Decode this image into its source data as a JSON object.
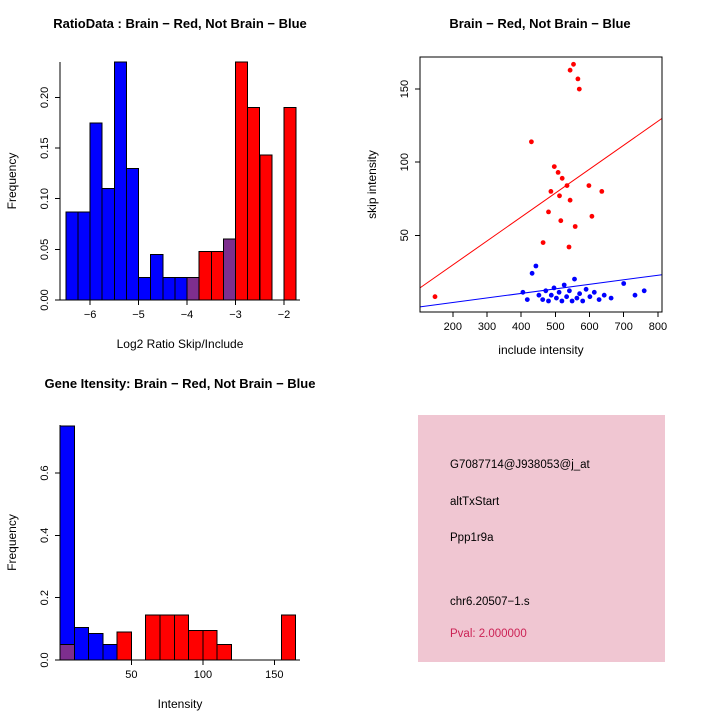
{
  "colors": {
    "red": "#FF0000",
    "blue": "#0000FF",
    "purple": "#7E2E8E",
    "axis": "#000000",
    "info_panel_bg": "#F0C6D2",
    "pval_text": "#CC2255"
  },
  "chart_data": [
    {
      "id": "ratio_histogram",
      "type": "bar",
      "title": "RatioData : Brain − Red, Not Brain − Blue",
      "xlabel": "Log2 Ratio Skip/Include",
      "ylabel": "Frequency",
      "xlim": [
        -6.62,
        -1.67
      ],
      "ylim": [
        0,
        0.235
      ],
      "xticks": [
        -6,
        -5,
        -4,
        -3,
        -2
      ],
      "xtick_labels": [
        "−6",
        "−5",
        "−4",
        "−3",
        "−2"
      ],
      "yticks": [
        0,
        0.05,
        0.1,
        0.15,
        0.2
      ],
      "ytick_labels": [
        "0.00",
        "0.05",
        "0.10",
        "0.15",
        "0.20"
      ],
      "bin_width": 0.25,
      "bars": [
        {
          "x": -6.5,
          "h": 0.087,
          "c": "blue"
        },
        {
          "x": -6.25,
          "h": 0.087,
          "c": "blue"
        },
        {
          "x": -6.0,
          "h": 0.175,
          "c": "blue"
        },
        {
          "x": -5.75,
          "h": 0.11,
          "c": "blue"
        },
        {
          "x": -5.5,
          "h": 0.235,
          "c": "blue"
        },
        {
          "x": -5.25,
          "h": 0.13,
          "c": "blue"
        },
        {
          "x": -5.0,
          "h": 0.022,
          "c": "blue"
        },
        {
          "x": -4.75,
          "h": 0.045,
          "c": "blue"
        },
        {
          "x": -4.5,
          "h": 0.022,
          "c": "blue"
        },
        {
          "x": -4.25,
          "h": 0.022,
          "c": "blue"
        },
        {
          "x": -4.0,
          "h": 0.022,
          "c": "purple"
        },
        {
          "x": -3.75,
          "h": 0.048,
          "c": "red"
        },
        {
          "x": -3.5,
          "h": 0.048,
          "c": "red"
        },
        {
          "x": -3.25,
          "h": 0.06,
          "c": "purple"
        },
        {
          "x": -3.0,
          "h": 0.235,
          "c": "red"
        },
        {
          "x": -2.75,
          "h": 0.19,
          "c": "red"
        },
        {
          "x": -2.5,
          "h": 0.143,
          "c": "red"
        },
        {
          "x": -2.0,
          "h": 0.19,
          "c": "red"
        }
      ]
    },
    {
      "id": "intensity_scatter",
      "type": "scatter",
      "box": true,
      "title": "Brain − Red, Not Brain − Blue",
      "xlabel": "include intensity",
      "ylabel": "skip intensity",
      "xlim": [
        104,
        812
      ],
      "ylim": [
        -2.5,
        172
      ],
      "xticks": [
        200,
        300,
        400,
        500,
        600,
        700,
        800
      ],
      "xtick_labels": [
        "200",
        "300",
        "400",
        "500",
        "600",
        "700",
        "800"
      ],
      "yticks": [
        50,
        100,
        150
      ],
      "ytick_labels": [
        "50",
        "100",
        "150"
      ],
      "series": [
        {
          "name": "brain-red",
          "c": "red",
          "points": [
            [
              148,
              8
            ],
            [
              430,
              114
            ],
            [
              543,
              163
            ],
            [
              553,
              167
            ],
            [
              566,
              157
            ],
            [
              570,
              150
            ],
            [
              497,
              97
            ],
            [
              508,
              93
            ],
            [
              520,
              89
            ],
            [
              534,
              84
            ],
            [
              487,
              80
            ],
            [
              512,
              77
            ],
            [
              543,
              74
            ],
            [
              598,
              84
            ],
            [
              636,
              80
            ],
            [
              480,
              66
            ],
            [
              516,
              60
            ],
            [
              558,
              56
            ],
            [
              607,
              63
            ],
            [
              464,
              45
            ],
            [
              540,
              42
            ]
          ]
        },
        {
          "name": "not-brain-blue",
          "c": "blue",
          "points": [
            [
              405,
              11
            ],
            [
              418,
              6
            ],
            [
              432,
              24
            ],
            [
              443,
              29
            ],
            [
              452,
              9
            ],
            [
              463,
              6
            ],
            [
              472,
              12
            ],
            [
              480,
              5
            ],
            [
              488,
              9
            ],
            [
              496,
              14
            ],
            [
              503,
              7
            ],
            [
              511,
              11
            ],
            [
              519,
              5
            ],
            [
              526,
              16
            ],
            [
              533,
              8
            ],
            [
              541,
              12
            ],
            [
              549,
              5
            ],
            [
              556,
              20
            ],
            [
              563,
              7
            ],
            [
              571,
              10
            ],
            [
              580,
              5
            ],
            [
              590,
              13
            ],
            [
              601,
              8
            ],
            [
              614,
              11
            ],
            [
              628,
              6
            ],
            [
              643,
              9
            ],
            [
              663,
              7
            ],
            [
              700,
              17
            ],
            [
              733,
              9
            ],
            [
              760,
              12
            ]
          ]
        }
      ],
      "lines": [
        {
          "c": "red",
          "from": [
            104,
            14
          ],
          "to": [
            812,
            130
          ]
        },
        {
          "c": "blue",
          "from": [
            104,
            1
          ],
          "to": [
            812,
            23
          ]
        }
      ]
    },
    {
      "id": "gene_intensity_histogram",
      "type": "bar",
      "title": "Gene Itensity: Brain − Red, Not Brain − Blue",
      "xlabel": "Intensity",
      "ylabel": "Frequency",
      "xlim": [
        0,
        168
      ],
      "ylim": [
        0,
        0.754
      ],
      "xticks": [
        50,
        100,
        150
      ],
      "xtick_labels": [
        "50",
        "100",
        "150"
      ],
      "yticks": [
        0,
        0.2,
        0.4,
        0.6
      ],
      "ytick_labels": [
        "0.0",
        "0.2",
        "0.4",
        "0.6"
      ],
      "bin_width": 10,
      "bars": [
        {
          "x": 0,
          "h": 0.75,
          "c": "blue"
        },
        {
          "x": 0,
          "h": 0.05,
          "c": "purple"
        },
        {
          "x": 10,
          "h": 0.105,
          "c": "blue"
        },
        {
          "x": 20,
          "h": 0.085,
          "c": "blue"
        },
        {
          "x": 30,
          "h": 0.05,
          "c": "blue"
        },
        {
          "x": 40,
          "h": 0.09,
          "c": "red"
        },
        {
          "x": 60,
          "h": 0.145,
          "c": "red"
        },
        {
          "x": 70,
          "h": 0.145,
          "c": "red"
        },
        {
          "x": 80,
          "h": 0.145,
          "c": "red"
        },
        {
          "x": 90,
          "h": 0.095,
          "c": "red"
        },
        {
          "x": 100,
          "h": 0.095,
          "c": "red"
        },
        {
          "x": 110,
          "h": 0.05,
          "c": "red"
        },
        {
          "x": 155,
          "h": 0.145,
          "c": "red"
        }
      ]
    },
    {
      "id": "gene_info_panel",
      "type": "info",
      "lines": [
        "G7087714@J938053@j_at",
        "altTxStart",
        "Ppp1r9a",
        "chr6.20507−1.s"
      ],
      "pval": "Pval: 2.000000"
    }
  ]
}
